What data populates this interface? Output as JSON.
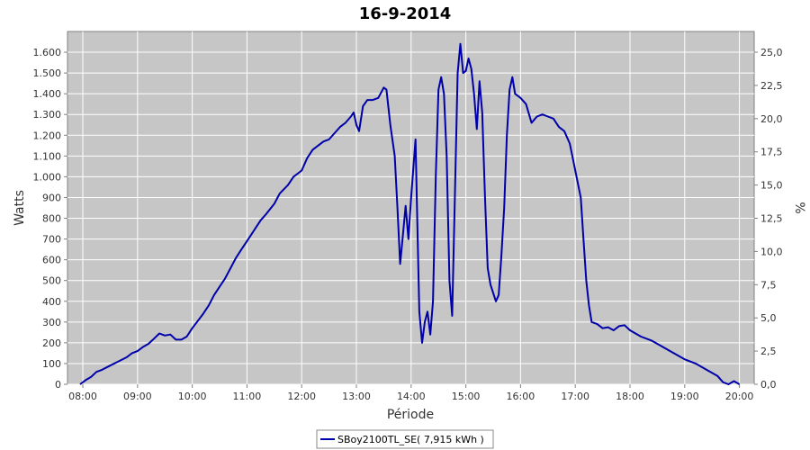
{
  "chart_data": {
    "type": "line",
    "title": "16-9-2014",
    "xlabel": "Période",
    "ylabel": "Watts",
    "y2label": "%",
    "x_unit": "time of day (hours)",
    "xlim": [
      7.72,
      20.27
    ],
    "ylim": [
      0,
      1700
    ],
    "y2lim": [
      0,
      26.56
    ],
    "grid": true,
    "legend_position": "bottom-center",
    "x_ticks": [
      {
        "v": 8,
        "label": "08:00"
      },
      {
        "v": 9,
        "label": "09:00"
      },
      {
        "v": 10,
        "label": "10:00"
      },
      {
        "v": 11,
        "label": "11:00"
      },
      {
        "v": 12,
        "label": "12:00"
      },
      {
        "v": 13,
        "label": "13:00"
      },
      {
        "v": 14,
        "label": "14:00"
      },
      {
        "v": 15,
        "label": "15:00"
      },
      {
        "v": 16,
        "label": "16:00"
      },
      {
        "v": 17,
        "label": "17:00"
      },
      {
        "v": 18,
        "label": "18:00"
      },
      {
        "v": 19,
        "label": "19:00"
      },
      {
        "v": 20,
        "label": "20:00"
      }
    ],
    "y_ticks": [
      {
        "v": 0,
        "label": "0"
      },
      {
        "v": 100,
        "label": "100"
      },
      {
        "v": 200,
        "label": "200"
      },
      {
        "v": 300,
        "label": "300"
      },
      {
        "v": 400,
        "label": "400"
      },
      {
        "v": 500,
        "label": "500"
      },
      {
        "v": 600,
        "label": "600"
      },
      {
        "v": 700,
        "label": "700"
      },
      {
        "v": 800,
        "label": "800"
      },
      {
        "v": 900,
        "label": "900"
      },
      {
        "v": 1000,
        "label": "1.000"
      },
      {
        "v": 1100,
        "label": "1.100"
      },
      {
        "v": 1200,
        "label": "1.200"
      },
      {
        "v": 1300,
        "label": "1.300"
      },
      {
        "v": 1400,
        "label": "1.400"
      },
      {
        "v": 1500,
        "label": "1.500"
      },
      {
        "v": 1600,
        "label": "1.600"
      }
    ],
    "y2_ticks": [
      {
        "v": 0,
        "label": "0,0"
      },
      {
        "v": 2.5,
        "label": "2,5"
      },
      {
        "v": 5,
        "label": "5,0"
      },
      {
        "v": 7.5,
        "label": "7,5"
      },
      {
        "v": 10,
        "label": "10,0"
      },
      {
        "v": 12.5,
        "label": "12,5"
      },
      {
        "v": 15,
        "label": "15,0"
      },
      {
        "v": 17.5,
        "label": "17,5"
      },
      {
        "v": 20,
        "label": "20,0"
      },
      {
        "v": 22.5,
        "label": "22,5"
      },
      {
        "v": 25,
        "label": "25,0"
      }
    ],
    "series": [
      {
        "name": "SBoy2100TL_SE( 7,915 kWh )",
        "color": "#0000aa",
        "points": [
          [
            7.95,
            0
          ],
          [
            8.05,
            20
          ],
          [
            8.15,
            35
          ],
          [
            8.25,
            60
          ],
          [
            8.35,
            70
          ],
          [
            8.5,
            90
          ],
          [
            8.65,
            110
          ],
          [
            8.8,
            130
          ],
          [
            8.9,
            150
          ],
          [
            9.0,
            160
          ],
          [
            9.1,
            180
          ],
          [
            9.2,
            195
          ],
          [
            9.3,
            220
          ],
          [
            9.4,
            245
          ],
          [
            9.5,
            235
          ],
          [
            9.6,
            240
          ],
          [
            9.7,
            215
          ],
          [
            9.8,
            215
          ],
          [
            9.9,
            230
          ],
          [
            10.0,
            270
          ],
          [
            10.1,
            305
          ],
          [
            10.2,
            340
          ],
          [
            10.3,
            380
          ],
          [
            10.4,
            430
          ],
          [
            10.5,
            470
          ],
          [
            10.6,
            510
          ],
          [
            10.7,
            560
          ],
          [
            10.8,
            610
          ],
          [
            10.9,
            650
          ],
          [
            11.0,
            690
          ],
          [
            11.1,
            730
          ],
          [
            11.15,
            750
          ],
          [
            11.25,
            790
          ],
          [
            11.35,
            820
          ],
          [
            11.5,
            870
          ],
          [
            11.6,
            920
          ],
          [
            11.75,
            960
          ],
          [
            11.85,
            1000
          ],
          [
            12.0,
            1030
          ],
          [
            12.1,
            1090
          ],
          [
            12.2,
            1130
          ],
          [
            12.3,
            1150
          ],
          [
            12.4,
            1170
          ],
          [
            12.5,
            1180
          ],
          [
            12.6,
            1210
          ],
          [
            12.7,
            1240
          ],
          [
            12.8,
            1260
          ],
          [
            12.9,
            1290
          ],
          [
            12.95,
            1310
          ],
          [
            13.0,
            1250
          ],
          [
            13.05,
            1220
          ],
          [
            13.12,
            1340
          ],
          [
            13.2,
            1370
          ],
          [
            13.3,
            1370
          ],
          [
            13.4,
            1380
          ],
          [
            13.5,
            1430
          ],
          [
            13.55,
            1420
          ],
          [
            13.62,
            1250
          ],
          [
            13.7,
            1100
          ],
          [
            13.75,
            850
          ],
          [
            13.8,
            580
          ],
          [
            13.85,
            720
          ],
          [
            13.9,
            860
          ],
          [
            13.95,
            700
          ],
          [
            14.0,
            900
          ],
          [
            14.08,
            1180
          ],
          [
            14.12,
            700
          ],
          [
            14.15,
            350
          ],
          [
            14.2,
            200
          ],
          [
            14.25,
            300
          ],
          [
            14.3,
            350
          ],
          [
            14.35,
            240
          ],
          [
            14.4,
            400
          ],
          [
            14.45,
            1000
          ],
          [
            14.5,
            1420
          ],
          [
            14.55,
            1480
          ],
          [
            14.6,
            1400
          ],
          [
            14.65,
            1100
          ],
          [
            14.7,
            500
          ],
          [
            14.75,
            330
          ],
          [
            14.8,
            900
          ],
          [
            14.85,
            1500
          ],
          [
            14.9,
            1640
          ],
          [
            14.95,
            1500
          ],
          [
            15.0,
            1510
          ],
          [
            15.05,
            1570
          ],
          [
            15.1,
            1520
          ],
          [
            15.15,
            1400
          ],
          [
            15.2,
            1230
          ],
          [
            15.25,
            1460
          ],
          [
            15.3,
            1310
          ],
          [
            15.35,
            900
          ],
          [
            15.4,
            560
          ],
          [
            15.45,
            480
          ],
          [
            15.55,
            400
          ],
          [
            15.6,
            430
          ],
          [
            15.65,
            620
          ],
          [
            15.7,
            850
          ],
          [
            15.75,
            1200
          ],
          [
            15.8,
            1420
          ],
          [
            15.85,
            1480
          ],
          [
            15.9,
            1400
          ],
          [
            16.0,
            1380
          ],
          [
            16.1,
            1350
          ],
          [
            16.2,
            1260
          ],
          [
            16.3,
            1290
          ],
          [
            16.4,
            1300
          ],
          [
            16.5,
            1290
          ],
          [
            16.6,
            1280
          ],
          [
            16.7,
            1240
          ],
          [
            16.8,
            1220
          ],
          [
            16.9,
            1160
          ],
          [
            17.0,
            1030
          ],
          [
            17.1,
            900
          ],
          [
            17.15,
            700
          ],
          [
            17.2,
            500
          ],
          [
            17.25,
            380
          ],
          [
            17.3,
            300
          ],
          [
            17.4,
            290
          ],
          [
            17.5,
            270
          ],
          [
            17.6,
            275
          ],
          [
            17.7,
            260
          ],
          [
            17.8,
            280
          ],
          [
            17.9,
            285
          ],
          [
            18.0,
            260
          ],
          [
            18.2,
            230
          ],
          [
            18.4,
            210
          ],
          [
            18.6,
            180
          ],
          [
            18.8,
            150
          ],
          [
            19.0,
            120
          ],
          [
            19.2,
            100
          ],
          [
            19.4,
            70
          ],
          [
            19.6,
            40
          ],
          [
            19.7,
            10
          ],
          [
            19.8,
            0
          ],
          [
            19.9,
            15
          ],
          [
            20.0,
            0
          ]
        ]
      }
    ]
  }
}
